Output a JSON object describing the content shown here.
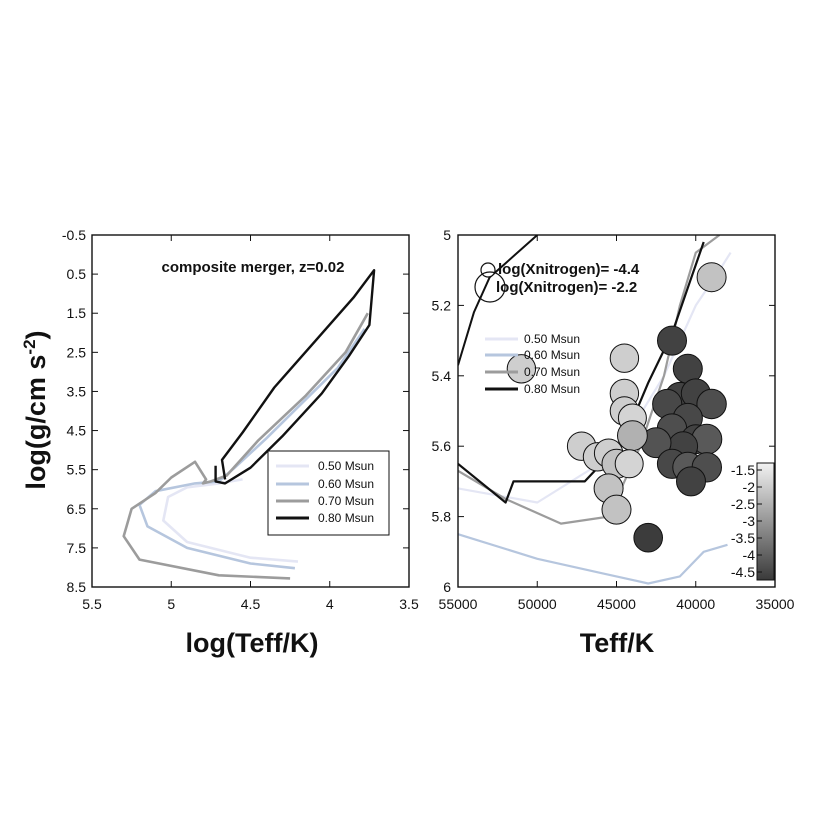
{
  "chart_data": [
    {
      "type": "line",
      "title": "composite merger, z=0.02",
      "xlabel": "log(Teff/K)",
      "ylabel_main": "log(g/cm  s",
      "ylabel_sup": "-2",
      "ylabel_close": ")",
      "xlim": [
        5.5,
        3.5
      ],
      "ylim": [
        -0.5,
        8.5
      ],
      "x_ticks": [
        "5.5",
        "5",
        "4.5",
        "4",
        "3.5"
      ],
      "y_ticks": [
        "-0.5",
        "0.5",
        "1.5",
        "2.5",
        "3.5",
        "4.5",
        "5.5",
        "6.5",
        "7.5",
        "8.5"
      ],
      "legend_position": "lower-right",
      "series": [
        {
          "name": "0.50 Msun",
          "color": "#e4e6f4",
          "x": [
            4.2,
            4.5,
            4.9,
            5.05,
            5.02,
            4.9,
            4.7,
            4.55
          ],
          "y": [
            7.85,
            7.75,
            7.35,
            6.8,
            6.2,
            5.95,
            5.85,
            5.75
          ]
        },
        {
          "name": "0.60 Msun",
          "color": "#b6c6de",
          "x": [
            4.22,
            4.5,
            4.9,
            5.15,
            5.2,
            5.1,
            4.85,
            4.7,
            4.6,
            4.4,
            4.2,
            3.95,
            3.78
          ],
          "y": [
            8.02,
            7.9,
            7.5,
            6.95,
            6.4,
            6.05,
            5.85,
            5.8,
            5.45,
            4.7,
            3.9,
            2.9,
            1.9
          ]
        },
        {
          "name": "0.70 Msun",
          "color": "#9c9c9c",
          "x": [
            4.25,
            4.7,
            5.2,
            5.3,
            5.25,
            5.1,
            5.0,
            4.85,
            4.78,
            4.8,
            4.75,
            4.65,
            4.45,
            4.15,
            3.9,
            3.76
          ],
          "y": [
            8.28,
            8.2,
            7.8,
            7.2,
            6.5,
            6.1,
            5.7,
            5.3,
            5.75,
            5.85,
            5.8,
            5.65,
            4.75,
            3.6,
            2.5,
            1.5
          ]
        },
        {
          "name": "0.80 Msun",
          "color": "#111111",
          "x": [
            4.72,
            4.72,
            4.66,
            4.5,
            4.3,
            4.05,
            3.88,
            3.75,
            3.72,
            3.85,
            4.1,
            4.35,
            4.55,
            4.68,
            4.66
          ],
          "y": [
            5.4,
            5.8,
            5.85,
            5.45,
            4.65,
            3.55,
            2.6,
            1.8,
            0.4,
            1.1,
            2.25,
            3.4,
            4.55,
            5.25,
            5.75
          ]
        }
      ]
    },
    {
      "type": "scatter",
      "xlabel": "Teff/K",
      "xlim": [
        55000,
        35000
      ],
      "ylim": [
        5,
        6
      ],
      "x_ticks": [
        "55000",
        "50000",
        "45000",
        "40000",
        "35000"
      ],
      "y_ticks": [
        "5",
        "5.2",
        "5.4",
        "5.6",
        "5.8",
        "6"
      ],
      "size_legend": [
        "log(Xnitrogen)= -4.4",
        "log(Xnitrogen)= -2.2"
      ],
      "colorbar_ticks": [
        "-1.5",
        "-2",
        "-2.5",
        "-3",
        "-3.5",
        "-4",
        "-4.5"
      ],
      "legend_position": "upper-left",
      "series_names": [
        "0.50 Msun",
        "0.60 Msun",
        "0.70 Msun",
        "0.80 Msun"
      ],
      "tracks": [
        {
          "name": "0.50 Msun",
          "color": "#e4e6f4",
          "x": [
            55000,
            50000,
            45000,
            42000,
            40000,
            38500,
            37800
          ],
          "y": [
            5.72,
            5.76,
            5.62,
            5.4,
            5.2,
            5.1,
            5.05
          ]
        },
        {
          "name": "0.60 Msun",
          "color": "#b6c6de",
          "x": [
            55000,
            50000,
            46000,
            43000,
            41000,
            39500,
            38000
          ],
          "y": [
            5.85,
            5.92,
            5.96,
            5.99,
            5.97,
            5.9,
            5.88
          ]
        },
        {
          "name": "0.70 Msun",
          "color": "#9c9c9c",
          "x": [
            55000,
            52000,
            48500,
            45500,
            43500,
            42000,
            41000,
            40000,
            38500
          ],
          "y": [
            5.67,
            5.75,
            5.82,
            5.8,
            5.6,
            5.4,
            5.2,
            5.05,
            5.0
          ]
        },
        {
          "name": "0.80 Msun",
          "color": "#111111",
          "x": [
            55000,
            52000,
            51500,
            47000,
            44500,
            43000,
            41500,
            40500,
            39500
          ],
          "y": [
            5.65,
            5.76,
            5.7,
            5.7,
            5.58,
            5.42,
            5.28,
            5.15,
            5.02
          ]
        }
      ],
      "upper_track": {
        "color": "#111111",
        "x": [
          55000,
          54000,
          53000,
          52000,
          51000,
          50000
        ],
        "y": [
          5.37,
          5.22,
          5.12,
          5.08,
          5.04,
          5.0
        ]
      },
      "points": [
        {
          "teff": 39000,
          "logg": 5.12,
          "logN": -2.2
        },
        {
          "teff": 41500,
          "logg": 5.3,
          "logN": -4.4
        },
        {
          "teff": 40500,
          "logg": 5.38,
          "logN": -4.4
        },
        {
          "teff": 41000,
          "logg": 5.46,
          "logN": -4.4
        },
        {
          "teff": 40000,
          "logg": 5.45,
          "logN": -4.4
        },
        {
          "teff": 41800,
          "logg": 5.48,
          "logN": -4.3
        },
        {
          "teff": 39000,
          "logg": 5.48,
          "logN": -4.2
        },
        {
          "teff": 40500,
          "logg": 5.52,
          "logN": -4.3
        },
        {
          "teff": 41500,
          "logg": 5.55,
          "logN": -4.2
        },
        {
          "teff": 40000,
          "logg": 5.58,
          "logN": -4.4
        },
        {
          "teff": 39300,
          "logg": 5.58,
          "logN": -4.0
        },
        {
          "teff": 40800,
          "logg": 5.6,
          "logN": -4.4
        },
        {
          "teff": 42500,
          "logg": 5.59,
          "logN": -4.1
        },
        {
          "teff": 41500,
          "logg": 5.65,
          "logN": -4.3
        },
        {
          "teff": 40500,
          "logg": 5.66,
          "logN": -4.0
        },
        {
          "teff": 39300,
          "logg": 5.66,
          "logN": -4.2
        },
        {
          "teff": 40300,
          "logg": 5.7,
          "logN": -4.4
        },
        {
          "teff": 43000,
          "logg": 5.86,
          "logN": -4.5
        },
        {
          "teff": 44500,
          "logg": 5.35,
          "logN": -2.0
        },
        {
          "teff": 44500,
          "logg": 5.45,
          "logN": -2.0
        },
        {
          "teff": 44500,
          "logg": 5.5,
          "logN": -2.0
        },
        {
          "teff": 44000,
          "logg": 5.52,
          "logN": -1.9
        },
        {
          "teff": 44000,
          "logg": 5.57,
          "logN": -2.5
        },
        {
          "teff": 47200,
          "logg": 5.6,
          "logN": -2.0
        },
        {
          "teff": 46200,
          "logg": 5.63,
          "logN": -2.0
        },
        {
          "teff": 45500,
          "logg": 5.62,
          "logN": -2.0
        },
        {
          "teff": 45000,
          "logg": 5.65,
          "logN": -2.2
        },
        {
          "teff": 44200,
          "logg": 5.65,
          "logN": -1.9
        },
        {
          "teff": 45500,
          "logg": 5.72,
          "logN": -2.2
        },
        {
          "teff": 45000,
          "logg": 5.78,
          "logN": -2.2
        },
        {
          "teff": 51000,
          "logg": 5.38,
          "logN": -2.0
        }
      ]
    }
  ]
}
